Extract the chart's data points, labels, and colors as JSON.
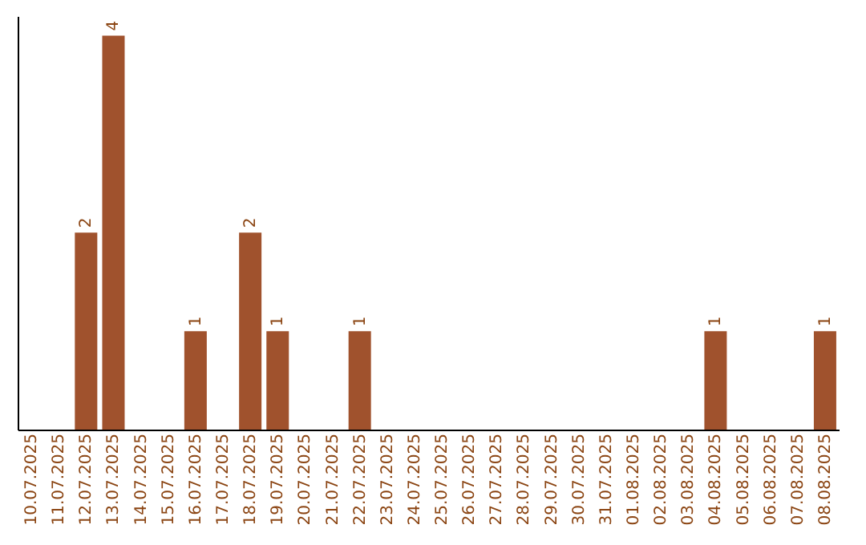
{
  "chart_data": {
    "type": "bar",
    "categories": [
      "10.07.2025",
      "11.07.2025",
      "12.07.2025",
      "13.07.2025",
      "14.07.2025",
      "15.07.2025",
      "16.07.2025",
      "17.07.2025",
      "18.07.2025",
      "19.07.2025",
      "20.07.2025",
      "21.07.2025",
      "22.07.2025",
      "23.07.2025",
      "24.07.2025",
      "25.07.2025",
      "26.07.2025",
      "27.07.2025",
      "28.07.2025",
      "29.07.2025",
      "30.07.2025",
      "31.07.2025",
      "01.08.2025",
      "02.08.2025",
      "03.08.2025",
      "04.08.2025",
      "05.08.2025",
      "06.08.2025",
      "07.08.2025",
      "08.08.2025"
    ],
    "values": [
      0,
      0,
      2,
      4,
      0,
      0,
      1,
      0,
      2,
      1,
      0,
      0,
      1,
      0,
      0,
      0,
      0,
      0,
      0,
      0,
      0,
      0,
      0,
      0,
      0,
      1,
      0,
      0,
      0,
      1
    ],
    "value_labels": [
      null,
      null,
      "2",
      "4",
      null,
      null,
      "1",
      null,
      "2",
      "1",
      null,
      null,
      "1",
      null,
      null,
      null,
      null,
      null,
      null,
      null,
      null,
      null,
      null,
      null,
      null,
      "1",
      null,
      null,
      null,
      "1"
    ],
    "color": "#a0522d",
    "ylim": [
      0,
      4.2
    ],
    "tick_labels": "x",
    "grid": false
  }
}
